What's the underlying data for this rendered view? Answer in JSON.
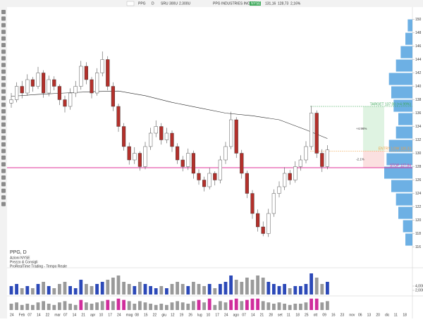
{
  "toolbar": {
    "symbol": "PPG",
    "period": "D",
    "fields": [
      "SRU",
      "300U",
      "2.300U"
    ],
    "name": "PPG INDUSTRIES INC",
    "exchange": "NYSE",
    "quote": [
      "131,16",
      "128,73",
      "2,16%"
    ]
  },
  "legend": {
    "title": "PPG, D",
    "lines": [
      "Azioni NYSE",
      "Prezzo & Consigli"
    ],
    "platform": "ProRealTime Trading - Tempo Reale"
  },
  "chart_data": {
    "type": "candlestick",
    "up_color": "#ffffff",
    "down_color": "#b3302b",
    "ylim": [
      115,
      151
    ],
    "yticks": [
      116,
      118,
      120,
      122,
      124,
      126,
      128,
      130,
      132,
      134,
      136,
      138,
      140,
      142,
      144,
      146,
      148,
      150
    ],
    "x_labels": [
      "24",
      "Feb",
      "07",
      "14",
      "22",
      "mar",
      "07",
      "14",
      "21",
      "apr",
      "10",
      "17",
      "24",
      "mag",
      "08",
      "15",
      "22",
      "giu",
      "12",
      "19",
      "26",
      "lug",
      "10",
      "17",
      "24",
      "ago",
      "07",
      "14",
      "21",
      "28",
      "set",
      "11",
      "18",
      "25",
      "ott",
      "09",
      "16",
      "23",
      "nov",
      "06",
      "13",
      "20",
      "dic",
      "11",
      "18"
    ],
    "candles": [
      [
        137.5,
        139,
        136.8,
        138
      ],
      [
        138,
        140.6,
        137.6,
        140
      ],
      [
        140,
        140.8,
        138.2,
        139
      ],
      [
        139,
        141.8,
        138.6,
        141
      ],
      [
        141,
        141.4,
        139.2,
        140
      ],
      [
        140,
        142.9,
        139.6,
        142
      ],
      [
        142,
        142.4,
        138.3,
        139
      ],
      [
        139,
        141.6,
        138.5,
        141
      ],
      [
        141,
        141.5,
        139.4,
        140
      ],
      [
        140,
        140.3,
        137.2,
        138
      ],
      [
        138,
        138.6,
        136.1,
        137
      ],
      [
        137,
        139.7,
        136.5,
        139
      ],
      [
        139,
        140.8,
        138.4,
        140
      ],
      [
        140,
        143.8,
        139.5,
        143
      ],
      [
        143,
        143.6,
        140.3,
        141
      ],
      [
        141,
        141.4,
        138.2,
        139
      ],
      [
        139,
        142.7,
        138.6,
        142
      ],
      [
        142,
        145.2,
        141.5,
        144
      ],
      [
        144,
        144.5,
        139.4,
        140
      ],
      [
        140,
        140.6,
        136.3,
        137
      ],
      [
        137,
        137.4,
        133.2,
        134
      ],
      [
        134,
        134.5,
        130.4,
        131
      ],
      [
        131,
        131.6,
        128.3,
        129
      ],
      [
        129,
        130.9,
        128.4,
        130
      ],
      [
        130,
        130.3,
        127.4,
        128
      ],
      [
        128,
        131.7,
        127.6,
        131
      ],
      [
        131,
        133.8,
        130.5,
        133
      ],
      [
        133,
        134.9,
        132.4,
        134
      ],
      [
        134,
        134.5,
        131.3,
        132
      ],
      [
        132,
        133.8,
        131.5,
        133
      ],
      [
        133,
        133.4,
        130.2,
        131
      ],
      [
        131,
        131.5,
        128.4,
        129
      ],
      [
        129,
        129.6,
        127.3,
        128
      ],
      [
        128,
        130.7,
        127.5,
        130
      ],
      [
        130,
        130.4,
        126.2,
        127
      ],
      [
        127,
        127.6,
        125.3,
        126
      ],
      [
        126,
        126.5,
        124.3,
        125
      ],
      [
        125,
        127.8,
        124.6,
        127
      ],
      [
        127,
        127.3,
        125.2,
        126
      ],
      [
        126,
        129.6,
        125.5,
        129
      ],
      [
        129,
        131.7,
        128.4,
        131
      ],
      [
        131,
        136.2,
        130.6,
        135
      ],
      [
        135,
        135.4,
        129.3,
        130
      ],
      [
        130,
        130.5,
        126.2,
        127
      ],
      [
        127,
        127.4,
        123.3,
        124
      ],
      [
        124,
        124.5,
        120.2,
        121
      ],
      [
        121,
        121.6,
        118.3,
        119
      ],
      [
        119,
        119.8,
        117.6,
        118
      ],
      [
        118,
        121.7,
        117.5,
        121
      ],
      [
        121,
        124.6,
        120.5,
        124
      ],
      [
        124,
        125.8,
        123.4,
        125
      ],
      [
        125,
        127.9,
        124.5,
        127
      ],
      [
        127,
        127.5,
        125.3,
        126
      ],
      [
        126,
        128.8,
        125.6,
        128
      ],
      [
        128,
        129.7,
        127.4,
        129
      ],
      [
        129,
        131.8,
        128.5,
        131
      ],
      [
        131,
        137.1,
        130.5,
        136
      ],
      [
        136,
        136.4,
        129.3,
        130
      ],
      [
        130,
        130.6,
        127.2,
        128
      ],
      [
        128,
        131.2,
        127.6,
        130.5
      ]
    ],
    "ma200": {
      "color": "#222222",
      "x": [
        0,
        5,
        10,
        15,
        20,
        25,
        30,
        35,
        40,
        45,
        50,
        55,
        59
      ],
      "values": [
        138.5,
        138.8,
        139,
        139.2,
        139.3,
        138.6,
        137.6,
        136.8,
        136,
        135.6,
        135,
        133.5,
        132.2
      ]
    },
    "levels": [
      {
        "name": "TARGET 137.00 (+4.99%)",
        "value": 137,
        "color": "#3aa757"
      },
      {
        "name": "ENTRY LOW 130.33",
        "value": 130.33,
        "color": "#f0a040"
      },
      {
        "name": "STOP 127.84",
        "value": 127.84,
        "color": "#e0309a"
      }
    ],
    "annotations": [
      "+4.96%",
      "-2.1%"
    ],
    "volume_profile": {
      "color": "#2f8fd8",
      "levels": [
        117,
        119,
        121,
        123,
        125,
        127,
        129,
        131,
        133,
        135,
        137,
        139,
        141,
        143,
        145,
        147,
        149
      ],
      "values": [
        3,
        4,
        6,
        7,
        9,
        12,
        11,
        10,
        7,
        6,
        8,
        9,
        10,
        7,
        5,
        3,
        2
      ]
    },
    "volume": {
      "color": "#9a9a9a",
      "up_color": "#2c49b8",
      "ylim": [
        0,
        10
      ],
      "yticks": [
        {
          "value": 4,
          "label": "4,000k"
        },
        {
          "value": 2,
          "label": "2,000k"
        }
      ],
      "values": [
        4,
        5,
        3,
        4,
        3,
        5,
        6,
        4,
        3,
        5,
        6,
        4,
        3,
        7,
        5,
        4,
        5,
        6,
        7,
        8,
        9,
        6,
        5,
        4,
        6,
        5,
        4,
        3,
        4,
        3,
        5,
        6,
        5,
        4,
        6,
        5,
        4,
        5,
        3,
        5,
        6,
        9,
        7,
        6,
        8,
        7,
        9,
        8,
        6,
        5,
        4,
        5,
        3,
        4,
        4,
        5,
        10,
        8,
        5,
        6
      ]
    },
    "oscillator": {
      "color": "#9a9a9a",
      "hi_color": "#d02d9c",
      "ylim": [
        0,
        10
      ],
      "values": [
        5,
        6,
        4,
        5,
        4,
        6,
        7,
        5,
        4,
        6,
        7,
        5,
        4,
        8,
        6,
        5,
        6,
        7,
        8,
        7,
        9,
        8,
        7,
        5,
        7,
        6,
        5,
        4,
        5,
        4,
        6,
        7,
        6,
        5,
        7,
        8,
        6,
        9,
        4,
        7,
        6,
        8,
        9,
        7,
        8,
        9,
        9,
        7,
        6,
        5,
        6,
        5,
        4,
        5,
        5,
        6,
        9,
        9,
        6,
        7
      ]
    }
  }
}
